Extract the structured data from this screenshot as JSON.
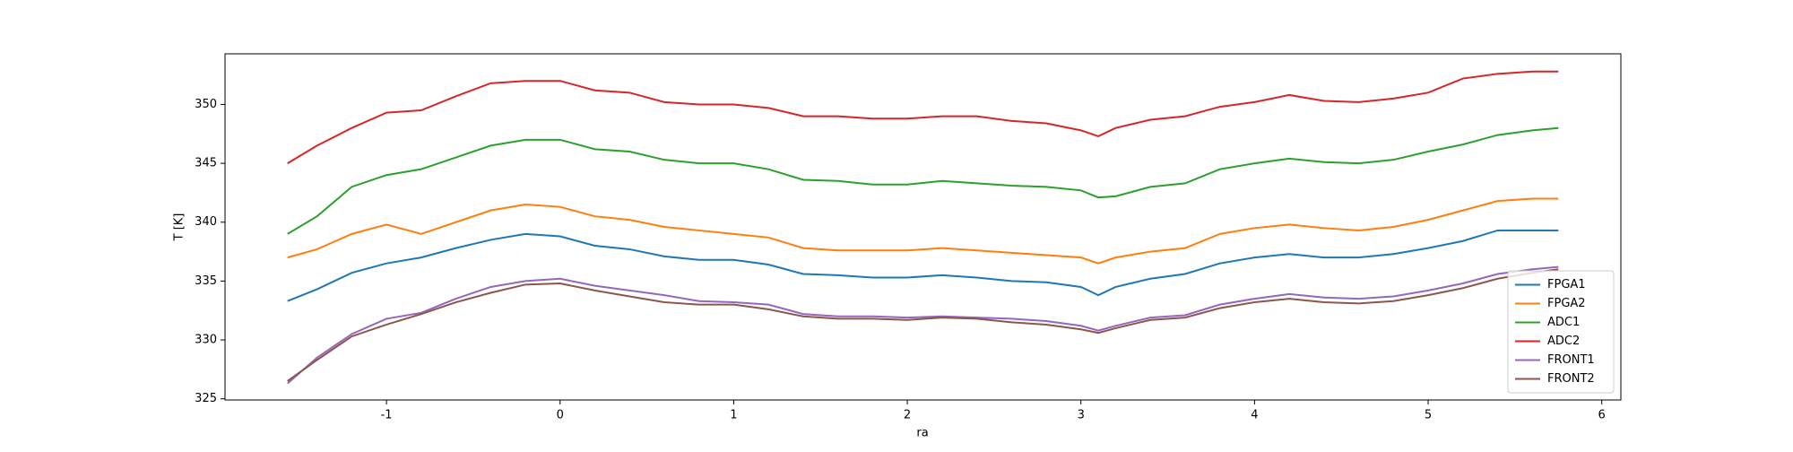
{
  "chart_data": {
    "type": "line",
    "x_label": "ra",
    "y_label": "T [K]",
    "x": [
      -1.57,
      -1.4,
      -1.2,
      -1.0,
      -0.8,
      -0.6,
      -0.4,
      -0.2,
      0,
      0.2,
      0.4,
      0.6,
      0.8,
      1.0,
      1.2,
      1.4,
      1.6,
      1.8,
      2.0,
      2.2,
      2.4,
      2.6,
      2.8,
      3.0,
      3.1,
      3.2,
      3.4,
      3.6,
      3.8,
      4.0,
      4.2,
      4.4,
      4.6,
      4.8,
      5.0,
      5.2,
      5.4,
      5.6,
      5.75
    ],
    "series": [
      {
        "name": "FPGA1",
        "color": "#1f77b4",
        "values": [
          333.3,
          334.3,
          335.7,
          336.5,
          337,
          337.8,
          338.5,
          339,
          338.8,
          338,
          337.7,
          337.1,
          336.8,
          336.8,
          336.4,
          335.6,
          335.5,
          335.3,
          335.3,
          335.5,
          335.3,
          335,
          334.9,
          334.5,
          333.8,
          334.5,
          335.2,
          335.6,
          336.5,
          337,
          337.3,
          337,
          337,
          337.3,
          337.8,
          338.4,
          339.3,
          339.3,
          339.3
        ]
      },
      {
        "name": "FPGA2",
        "color": "#ff7f0e",
        "values": [
          337,
          337.7,
          339,
          339.8,
          339,
          340,
          341,
          341.5,
          341.3,
          340.5,
          340.2,
          339.6,
          339.3,
          339,
          338.7,
          337.8,
          337.6,
          337.6,
          337.6,
          337.8,
          337.6,
          337.4,
          337.2,
          337,
          336.5,
          337,
          337.5,
          337.8,
          339,
          339.5,
          339.8,
          339.5,
          339.3,
          339.6,
          340.2,
          341,
          341.8,
          342,
          342
        ]
      },
      {
        "name": "ADC1",
        "color": "#2ca02c",
        "values": [
          339,
          340.5,
          343,
          344,
          344.5,
          345.5,
          346.5,
          347,
          347,
          346.2,
          346,
          345.3,
          345,
          345,
          344.5,
          343.6,
          343.5,
          343.2,
          343.2,
          343.5,
          343.3,
          343.1,
          343,
          342.7,
          342.1,
          342.2,
          343,
          343.3,
          344.5,
          345,
          345.4,
          345.1,
          345,
          345.3,
          346,
          346.6,
          347.4,
          347.8,
          348
        ]
      },
      {
        "name": "ADC2",
        "color": "#d62728",
        "values": [
          345,
          346.5,
          348,
          349.3,
          349.5,
          350.7,
          351.8,
          352,
          352,
          351.2,
          351,
          350.2,
          350,
          350,
          349.7,
          349,
          349,
          348.8,
          348.8,
          349,
          349,
          348.6,
          348.4,
          347.8,
          347.3,
          348,
          348.7,
          349,
          349.8,
          350.2,
          350.8,
          350.3,
          350.2,
          350.5,
          351,
          352.2,
          352.6,
          352.8,
          352.8
        ]
      },
      {
        "name": "FRONT1",
        "color": "#9467bd",
        "values": [
          326.3,
          328.5,
          330.5,
          331.8,
          332.3,
          333.5,
          334.5,
          335,
          335.2,
          334.6,
          334.2,
          333.8,
          333.3,
          333.2,
          333,
          332.2,
          332,
          332,
          331.9,
          332,
          331.9,
          331.8,
          331.6,
          331.2,
          330.8,
          331.2,
          331.9,
          332.1,
          333,
          333.5,
          333.9,
          333.6,
          333.5,
          333.7,
          334.2,
          334.8,
          335.6,
          336,
          336.2
        ]
      },
      {
        "name": "FRONT2",
        "color": "#8c564b",
        "values": [
          326.5,
          328.3,
          330.3,
          331.3,
          332.2,
          333.2,
          334,
          334.7,
          334.8,
          334.2,
          333.7,
          333.2,
          333,
          333,
          332.6,
          332,
          331.8,
          331.8,
          331.7,
          331.9,
          331.8,
          331.5,
          331.3,
          330.9,
          330.6,
          331,
          331.7,
          331.9,
          332.7,
          333.2,
          333.5,
          333.2,
          333.1,
          333.3,
          333.8,
          334.4,
          335.2,
          335.7,
          336
        ]
      }
    ],
    "xlim": [
      -1.93,
      6.11
    ],
    "ylim": [
      324.9,
      354.3
    ],
    "xticks": [
      -1,
      0,
      1,
      2,
      3,
      4,
      5,
      6
    ],
    "yticks": [
      325,
      330,
      335,
      340,
      345,
      350
    ],
    "legend": "lower right"
  }
}
